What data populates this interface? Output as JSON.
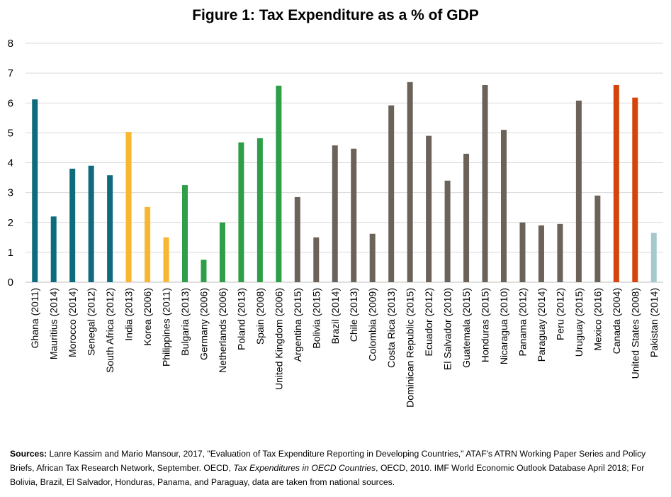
{
  "chart_data": {
    "type": "bar",
    "title": "Figure 1: Tax Expenditure as a % of GDP",
    "xlabel": "",
    "ylabel": "",
    "ylim": [
      0,
      8
    ],
    "yticks": [
      0,
      1,
      2,
      3,
      4,
      5,
      6,
      7,
      8
    ],
    "grid": true,
    "categories": [
      "Ghana (2011)",
      "Mauritius (2014)",
      "Morocco (2014)",
      "Senegal (2012)",
      "South Africa (2012)",
      "India (2013)",
      "Korea (2006)",
      "Philippines (2011)",
      "Bulgaria (2013)",
      "Germany (2006)",
      "Netherlands (2006)",
      "Poland (2013)",
      "Spain (2008)",
      "United Kingdom (2006)",
      "Argentina (2015)",
      "Bolivia (2015)",
      "Brazil (2014)",
      "Chile (2013)",
      "Colombia (2009)",
      "Costa Rica (2013)",
      "Dominican Republic (2015)",
      "Ecuador (2012)",
      "El Salvador (2010)",
      "Guatemala (2015)",
      "Honduras (2015)",
      "Nicaragua (2010)",
      "Panama (2012)",
      "Paraguay (2014)",
      "Peru (2012)",
      "Uruguay (2015)",
      "Mexico (2016)",
      "Canada (2004)",
      "United States (2008)",
      "Pakistan (2014)"
    ],
    "values": [
      6.12,
      2.2,
      3.8,
      3.9,
      3.58,
      5.03,
      2.52,
      1.5,
      3.25,
      0.75,
      2.0,
      4.68,
      4.82,
      6.58,
      2.85,
      1.5,
      4.58,
      4.47,
      1.62,
      5.92,
      6.7,
      4.9,
      3.4,
      4.3,
      6.6,
      5.1,
      2.0,
      1.9,
      1.95,
      6.08,
      2.9,
      6.6,
      6.18,
      1.65
    ],
    "colors": [
      "#0e6b7e",
      "#0e6b7e",
      "#0e6b7e",
      "#0e6b7e",
      "#0e6b7e",
      "#f7b731",
      "#f7b731",
      "#f7b731",
      "#2e9e47",
      "#2e9e47",
      "#2e9e47",
      "#2e9e47",
      "#2e9e47",
      "#2e9e47",
      "#6b625a",
      "#6b625a",
      "#6b625a",
      "#6b625a",
      "#6b625a",
      "#6b625a",
      "#6b625a",
      "#6b625a",
      "#6b625a",
      "#6b625a",
      "#6b625a",
      "#6b625a",
      "#6b625a",
      "#6b625a",
      "#6b625a",
      "#6b625a",
      "#6b625a",
      "#d4440c",
      "#d4440c",
      "#a6c8cc"
    ]
  },
  "sources": {
    "label": "Sources:",
    "text1": " Lanre Kassim and Mario Mansour, 2017, \"Evaluation of Tax Expenditure Reporting in Developing Countries,\" ATAF's ATRN Working Paper Series and Policy Briefs, African Tax Research Network, September. OECD, ",
    "italic": "Tax Expenditures in OECD Countries",
    "text2": ", OECD, 2010. IMF World Economic Outlook Database April 2018; For Bolivia, Brazil, El Salvador, Honduras, Panama, and Paraguay, data are taken from national sources."
  }
}
